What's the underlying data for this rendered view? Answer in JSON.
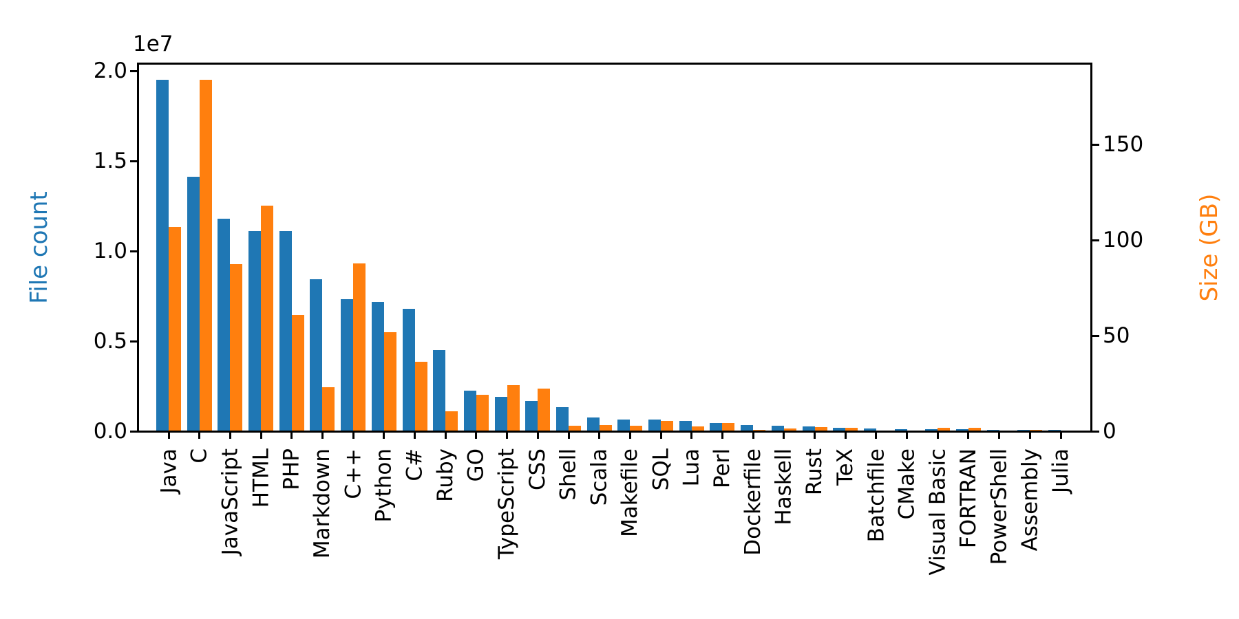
{
  "figure": {
    "background": "#ffffff",
    "text_color": "#000000"
  },
  "chart_data": {
    "type": "bar",
    "title": "",
    "grid": false,
    "legend_position": "none",
    "categories": [
      "Java",
      "C",
      "JavaScript",
      "HTML",
      "PHP",
      "Markdown",
      "C++",
      "Python",
      "C#",
      "Ruby",
      "GO",
      "TypeScript",
      "CSS",
      "Shell",
      "Scala",
      "Makefile",
      "SQL",
      "Lua",
      "Perl",
      "Dockerfile",
      "Haskell",
      "Rust",
      "TeX",
      "Batchfile",
      "CMake",
      "Visual Basic",
      "FORTRAN",
      "PowerShell",
      "Assembly",
      "Julia"
    ],
    "series": [
      {
        "name": "File count",
        "axis": "left",
        "color": "#1f77b4",
        "values": [
          19500000,
          14150000,
          11800000,
          11100000,
          11100000,
          8450000,
          7350000,
          7200000,
          6800000,
          4500000,
          2250000,
          1900000,
          1700000,
          1350000,
          780000,
          670000,
          640000,
          560000,
          470000,
          330000,
          300000,
          280000,
          200000,
          165000,
          125000,
          110000,
          100000,
          95000,
          75000,
          60000
        ]
      },
      {
        "name": "Size (GB)",
        "axis": "right",
        "color": "#ff7f0e",
        "values": [
          107,
          184,
          87.5,
          118,
          61,
          23,
          88,
          52,
          36.5,
          10.5,
          19,
          24,
          22.5,
          2.8,
          3.4,
          2.9,
          5.3,
          2.6,
          4.4,
          0.8,
          1.6,
          2.1,
          1.9,
          0.3,
          0.3,
          1.9,
          1.9,
          0.3,
          0.7,
          0.4
        ]
      }
    ],
    "left_axis": {
      "label": "File count",
      "color": "#1f77b4",
      "offset_text": "1e7",
      "tick_labels": [
        "0.0",
        "0.5",
        "1.0",
        "1.5",
        "2.0"
      ],
      "tick_values": [
        0,
        5000000,
        10000000,
        15000000,
        20000000
      ],
      "range": [
        0,
        20430000
      ]
    },
    "right_axis": {
      "label": "Size (GB)",
      "color": "#ff7f0e",
      "tick_labels": [
        "0",
        "50",
        "100",
        "150"
      ],
      "tick_values": [
        0,
        50,
        100,
        150
      ],
      "range": [
        0,
        192.6
      ]
    }
  }
}
